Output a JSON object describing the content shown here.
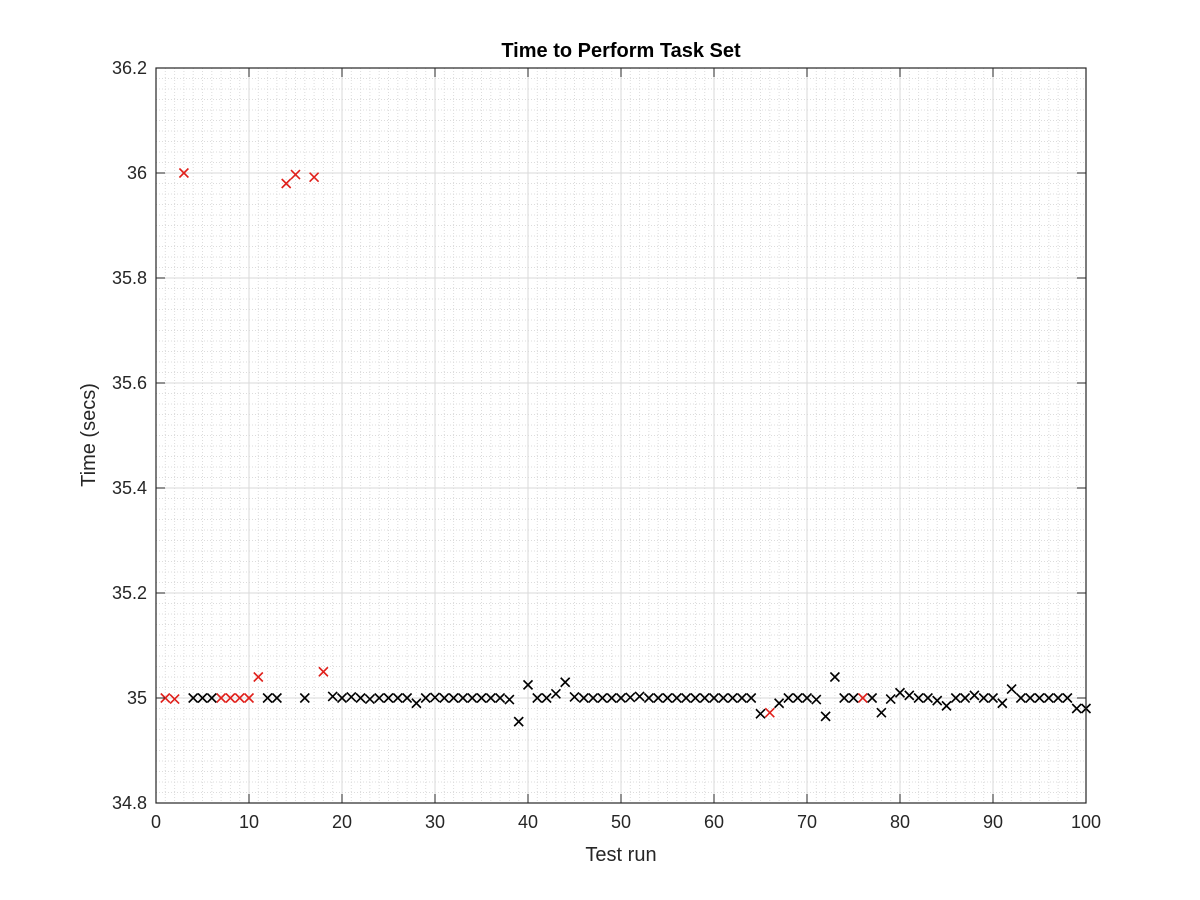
{
  "chart_data": {
    "type": "scatter",
    "title": "Time to Perform Task Set",
    "xlabel": "Test run",
    "ylabel": "Time (secs)",
    "xlim": [
      0,
      100
    ],
    "ylim": [
      34.8,
      36.2
    ],
    "xticks": [
      0,
      10,
      20,
      30,
      40,
      50,
      60,
      70,
      80,
      90,
      100
    ],
    "xtick_labels": [
      "0",
      "10",
      "20",
      "30",
      "40",
      "50",
      "60",
      "70",
      "80",
      "90",
      "100"
    ],
    "yticks": [
      34.8,
      35,
      35.2,
      35.4,
      35.6,
      35.8,
      36,
      36.2
    ],
    "ytick_labels": [
      "34.8",
      "35",
      "35.2",
      "35.4",
      "35.6",
      "35.8",
      "36",
      "36.2"
    ],
    "grid": true,
    "minor_grid": true,
    "marker": "x",
    "colors": {
      "highlight": "#e0201b",
      "normal": "#000000"
    },
    "series": [
      {
        "color": "#e0201b",
        "x": [
          1,
          2,
          3,
          7,
          8,
          9,
          10,
          11,
          14,
          15,
          17,
          18,
          66,
          76
        ],
        "y": [
          35.0,
          34.998,
          36.0,
          35.0,
          35.0,
          35.0,
          35.0,
          35.04,
          35.98,
          35.997,
          35.992,
          35.05,
          34.972,
          35.0
        ]
      },
      {
        "color": "#000000",
        "x": [
          4,
          5,
          6,
          12,
          13,
          16,
          19,
          20,
          21,
          22,
          23,
          24,
          25,
          26,
          27,
          28,
          29,
          30,
          31,
          32,
          33,
          34,
          35,
          36,
          37,
          38,
          39,
          40,
          41,
          42,
          43,
          44,
          45,
          46,
          47,
          48,
          49,
          50,
          51,
          52,
          53,
          54,
          55,
          56,
          57,
          58,
          59,
          60,
          61,
          62,
          63,
          64,
          65,
          67,
          68,
          69,
          70,
          71,
          72,
          73,
          74,
          75,
          77,
          78,
          79,
          80,
          81,
          82,
          83,
          84,
          85,
          86,
          87,
          88,
          89,
          90,
          91,
          92,
          93,
          94,
          95,
          96,
          97,
          98,
          99,
          100
        ],
        "y": [
          35.0,
          35.0,
          35.0,
          35.0,
          35.0,
          35.0,
          35.003,
          35.0,
          35.002,
          35.0,
          34.998,
          35.0,
          35.0,
          35.0,
          35.0,
          34.99,
          35.0,
          35.001,
          35.0,
          35.0,
          35.0,
          35.0,
          35.0,
          35.0,
          35.0,
          34.997,
          34.955,
          35.025,
          35.0,
          35.0,
          35.008,
          35.03,
          35.002,
          35.0,
          35.0,
          35.0,
          35.0,
          35.0,
          35.001,
          35.003,
          35.0,
          35.0,
          35.0,
          35.0,
          35.0,
          35.0,
          35.0,
          35.0,
          35.0,
          35.0,
          35.0,
          35.0,
          34.97,
          34.99,
          35.0,
          35.0,
          35.0,
          34.997,
          34.965,
          35.04,
          35.0,
          35.0,
          35.0,
          34.972,
          34.998,
          35.01,
          35.005,
          35.0,
          35.0,
          34.995,
          34.985,
          35.0,
          35.0,
          35.005,
          35.0,
          35.0,
          34.99,
          35.017,
          35.0,
          35.0,
          35.0,
          35.0,
          35.0,
          35.0,
          34.98,
          34.98
        ]
      }
    ]
  }
}
